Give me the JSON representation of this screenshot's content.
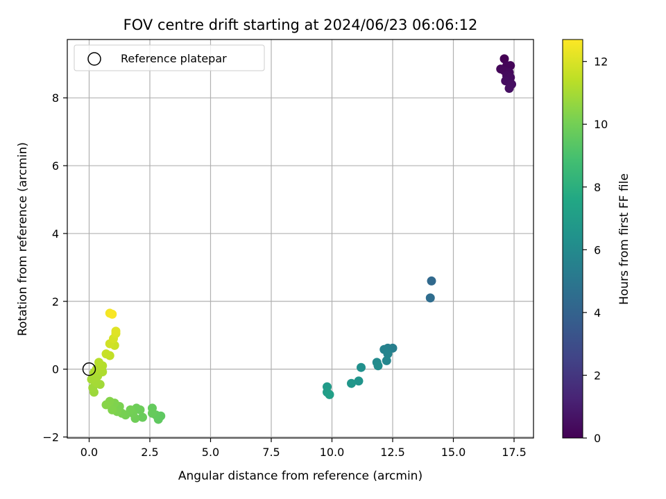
{
  "chart_data": {
    "type": "scatter",
    "title": "FOV centre drift starting at 2024/06/23 06:06:12",
    "xlabel": "Angular distance from reference (arcmin)",
    "ylabel": "Rotation from reference (arcmin)",
    "xlim": [
      -0.9,
      18.3
    ],
    "ylim": [
      -2.03,
      9.72
    ],
    "xticks": [
      0.0,
      2.5,
      5.0,
      7.5,
      10.0,
      12.5,
      15.0,
      17.5
    ],
    "xtick_labels": [
      "0.0",
      "2.5",
      "5.0",
      "7.5",
      "10.0",
      "12.5",
      "15.0",
      "17.5"
    ],
    "yticks": [
      -2,
      0,
      2,
      4,
      6,
      8
    ],
    "ytick_labels": [
      "−2",
      "0",
      "2",
      "4",
      "6",
      "8"
    ],
    "grid": true,
    "legend": {
      "position": "upper-left",
      "entries": [
        "Reference platepar"
      ]
    },
    "reference_point": {
      "x": 0.0,
      "y": 0.0
    },
    "colorbar": {
      "label": "Hours from first FF file",
      "min": 0,
      "max": 12.7,
      "ticks": [
        0,
        2,
        4,
        6,
        8,
        10,
        12
      ],
      "colormap": "viridis"
    },
    "points": [
      {
        "x": 17.1,
        "y": 9.15,
        "h": 0.0
      },
      {
        "x": 17.2,
        "y": 8.95,
        "h": 0.1
      },
      {
        "x": 17.35,
        "y": 8.95,
        "h": 0.15
      },
      {
        "x": 16.95,
        "y": 8.85,
        "h": 0.2
      },
      {
        "x": 17.1,
        "y": 8.8,
        "h": 0.25
      },
      {
        "x": 17.3,
        "y": 8.75,
        "h": 0.3
      },
      {
        "x": 17.2,
        "y": 8.65,
        "h": 0.35
      },
      {
        "x": 17.35,
        "y": 8.6,
        "h": 0.4
      },
      {
        "x": 17.15,
        "y": 8.5,
        "h": 0.45
      },
      {
        "x": 17.4,
        "y": 8.4,
        "h": 0.5
      },
      {
        "x": 17.3,
        "y": 8.28,
        "h": 0.55
      },
      {
        "x": 14.1,
        "y": 2.6,
        "h": 4.3
      },
      {
        "x": 14.05,
        "y": 2.1,
        "h": 4.5
      },
      {
        "x": 12.5,
        "y": 0.62,
        "h": 5.4
      },
      {
        "x": 12.3,
        "y": 0.62,
        "h": 5.5
      },
      {
        "x": 12.15,
        "y": 0.58,
        "h": 5.6
      },
      {
        "x": 12.3,
        "y": 0.45,
        "h": 5.7
      },
      {
        "x": 12.25,
        "y": 0.25,
        "h": 5.8
      },
      {
        "x": 11.85,
        "y": 0.2,
        "h": 6.0
      },
      {
        "x": 11.9,
        "y": 0.1,
        "h": 6.1
      },
      {
        "x": 11.2,
        "y": 0.05,
        "h": 6.3
      },
      {
        "x": 11.1,
        "y": -0.35,
        "h": 6.5
      },
      {
        "x": 10.8,
        "y": -0.42,
        "h": 6.6
      },
      {
        "x": 9.8,
        "y": -0.52,
        "h": 6.9
      },
      {
        "x": 9.8,
        "y": -0.68,
        "h": 7.0
      },
      {
        "x": 9.9,
        "y": -0.75,
        "h": 7.1
      },
      {
        "x": 2.95,
        "y": -1.38,
        "h": 9.5
      },
      {
        "x": 2.85,
        "y": -1.48,
        "h": 9.55
      },
      {
        "x": 2.75,
        "y": -1.35,
        "h": 9.6
      },
      {
        "x": 2.6,
        "y": -1.15,
        "h": 9.65
      },
      {
        "x": 2.6,
        "y": -1.3,
        "h": 9.7
      },
      {
        "x": 2.2,
        "y": -1.42,
        "h": 9.75
      },
      {
        "x": 2.1,
        "y": -1.2,
        "h": 9.8
      },
      {
        "x": 1.95,
        "y": -1.15,
        "h": 9.85
      },
      {
        "x": 1.9,
        "y": -1.45,
        "h": 9.9
      },
      {
        "x": 1.8,
        "y": -1.3,
        "h": 9.95
      },
      {
        "x": 1.7,
        "y": -1.2,
        "h": 10.0
      },
      {
        "x": 1.5,
        "y": -1.35,
        "h": 10.05
      },
      {
        "x": 1.35,
        "y": -1.3,
        "h": 10.1
      },
      {
        "x": 1.25,
        "y": -1.1,
        "h": 10.15
      },
      {
        "x": 1.15,
        "y": -1.25,
        "h": 10.2
      },
      {
        "x": 1.05,
        "y": -1.0,
        "h": 10.25
      },
      {
        "x": 0.95,
        "y": -1.2,
        "h": 10.3
      },
      {
        "x": 0.85,
        "y": -0.95,
        "h": 10.35
      },
      {
        "x": 0.7,
        "y": -1.05,
        "h": 10.4
      },
      {
        "x": 0.2,
        "y": -0.68,
        "h": 10.8
      },
      {
        "x": 0.15,
        "y": -0.55,
        "h": 10.85
      },
      {
        "x": 0.45,
        "y": -0.45,
        "h": 10.9
      },
      {
        "x": 0.3,
        "y": -0.4,
        "h": 10.95
      },
      {
        "x": 0.1,
        "y": -0.3,
        "h": 11.0
      },
      {
        "x": 0.35,
        "y": -0.2,
        "h": 11.05
      },
      {
        "x": 0.2,
        "y": -0.1,
        "h": 11.1
      },
      {
        "x": 0.55,
        "y": -0.08,
        "h": 11.15
      },
      {
        "x": 0.3,
        "y": 0.0,
        "h": 11.2
      },
      {
        "x": 0.55,
        "y": 0.1,
        "h": 11.25
      },
      {
        "x": 0.4,
        "y": 0.2,
        "h": 11.3
      },
      {
        "x": 0.85,
        "y": 0.4,
        "h": 11.5
      },
      {
        "x": 0.7,
        "y": 0.45,
        "h": 11.6
      },
      {
        "x": 1.05,
        "y": 0.7,
        "h": 11.7
      },
      {
        "x": 0.85,
        "y": 0.75,
        "h": 11.8
      },
      {
        "x": 1.0,
        "y": 0.9,
        "h": 11.9
      },
      {
        "x": 1.1,
        "y": 1.05,
        "h": 12.0
      },
      {
        "x": 1.1,
        "y": 1.12,
        "h": 12.1
      },
      {
        "x": 0.85,
        "y": 1.65,
        "h": 12.5
      },
      {
        "x": 0.95,
        "y": 1.62,
        "h": 12.6
      }
    ]
  }
}
